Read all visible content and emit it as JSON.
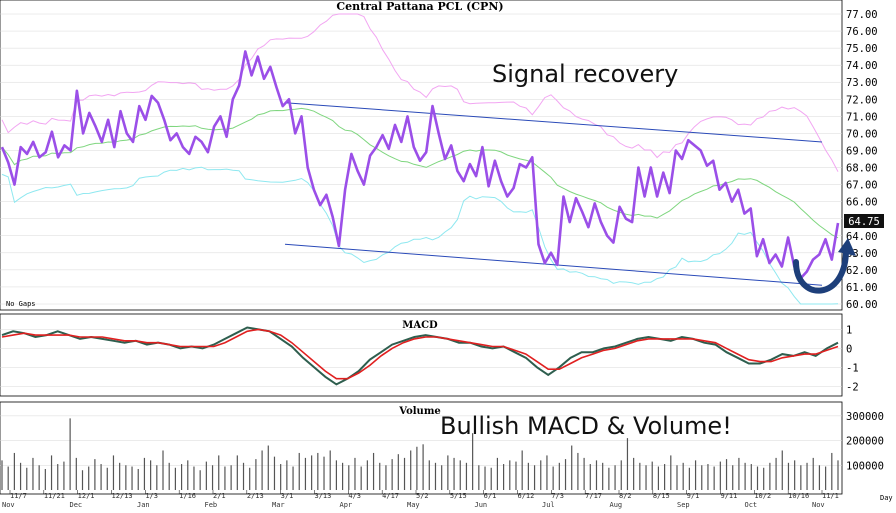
{
  "chart_data": [
    {
      "type": "line",
      "panel": "price",
      "title": "Central Pattana PCL (CPN)",
      "note": "No Gaps",
      "last_price_label": "64.75",
      "ylim": [
        60.0,
        77.0
      ],
      "y_ticks": [
        "77.00",
        "76.00",
        "75.00",
        "74.00",
        "73.00",
        "72.00",
        "71.00",
        "70.00",
        "69.00",
        "68.00",
        "67.00",
        "66.00",
        "65.00",
        "64.00",
        "63.00",
        "62.00",
        "61.00",
        "60.00"
      ],
      "x_date_ticks": [
        "11/7",
        "11/21",
        "12/1",
        "12/13",
        "1/3",
        "1/16",
        "2/1",
        "2/13",
        "3/1",
        "3/13",
        "4/3",
        "4/17",
        "5/2",
        "5/15",
        "6/1",
        "6/12",
        "7/3",
        "7/17",
        "8/2",
        "8/15",
        "9/1",
        "9/11",
        "10/2",
        "10/16",
        "11/1"
      ],
      "x_month_ticks": [
        "Nov",
        "Dec",
        "Jan",
        "Feb",
        "Mar",
        "Apr",
        "May",
        "Jun",
        "Jul",
        "Aug",
        "Sep",
        "Oct",
        "Nov"
      ],
      "x_unit": "Day",
      "annotations": [
        "Signal recovery"
      ],
      "series": [],
      "close_approx": [
        69.2,
        68.3,
        67.0,
        69.2,
        68.8,
        69.5,
        68.6,
        68.9,
        70.1,
        68.6,
        69.3,
        69.0,
        72.5,
        70.0,
        71.2,
        70.4,
        69.5,
        70.8,
        69.2,
        71.3,
        70.0,
        69.5,
        71.6,
        70.8,
        72.2,
        71.8,
        70.8,
        69.6,
        70.0,
        69.2,
        68.8,
        69.8,
        69.5,
        68.9,
        70.4,
        71.0,
        69.8,
        72.0,
        72.8,
        74.8,
        73.4,
        74.5,
        73.2,
        73.9,
        72.7,
        71.6,
        72.0,
        70.0,
        71.0,
        68.0,
        66.7,
        65.8,
        66.4,
        65.1,
        63.4,
        66.7,
        68.8,
        67.8,
        67.0,
        68.7,
        69.2,
        69.9,
        69.1,
        70.5,
        69.5,
        71.0,
        69.2,
        68.4,
        68.9,
        71.6,
        70.0,
        68.5,
        69.3,
        67.8,
        67.2,
        68.2,
        67.5,
        69.2,
        66.9,
        68.4,
        67.2,
        66.3,
        66.8,
        68.2,
        68.0,
        68.6,
        63.5,
        62.4,
        63.0,
        62.3,
        66.3,
        64.8,
        66.2,
        65.4,
        64.5,
        65.9,
        64.8,
        64.0,
        63.6,
        65.7,
        65.0,
        64.8,
        68.0,
        66.3,
        68.0,
        66.3,
        67.7,
        66.5,
        69.0,
        68.5,
        69.6,
        69.3,
        69.0,
        68.1,
        68.4,
        66.7,
        67.1,
        66.0,
        66.7,
        65.3,
        65.6,
        62.8,
        63.8,
        62.4,
        62.9,
        62.2,
        63.9,
        62.2,
        61.5,
        61.9,
        62.6,
        62.9,
        63.8,
        62.6,
        64.75
      ]
    },
    {
      "type": "line",
      "panel": "macd",
      "title": "MACD",
      "ylim": [
        -2.3,
        1.6
      ],
      "y_ticks": [
        "1",
        "0",
        "-1",
        "-2"
      ],
      "series": [],
      "macd_approx": [
        0.7,
        0.9,
        0.8,
        0.6,
        0.7,
        0.9,
        0.7,
        0.5,
        0.6,
        0.5,
        0.4,
        0.3,
        0.4,
        0.2,
        0.3,
        0.2,
        0.0,
        0.1,
        0.0,
        0.2,
        0.5,
        0.8,
        1.1,
        1.0,
        0.9,
        0.5,
        0.1,
        -0.5,
        -1.0,
        -1.5,
        -1.9,
        -1.6,
        -1.2,
        -0.6,
        -0.2,
        0.2,
        0.4,
        0.6,
        0.7,
        0.6,
        0.5,
        0.3,
        0.3,
        0.1,
        0.0,
        0.1,
        -0.2,
        -0.5,
        -1.0,
        -1.4,
        -1.0,
        -0.5,
        -0.2,
        -0.2,
        0.0,
        0.1,
        0.3,
        0.5,
        0.6,
        0.5,
        0.4,
        0.6,
        0.5,
        0.3,
        0.2,
        -0.2,
        -0.5,
        -0.8,
        -0.8,
        -0.6,
        -0.3,
        -0.4,
        -0.2,
        -0.4,
        0.0,
        0.3
      ],
      "signal_approx": [
        0.6,
        0.7,
        0.8,
        0.7,
        0.7,
        0.7,
        0.7,
        0.6,
        0.6,
        0.6,
        0.5,
        0.4,
        0.4,
        0.3,
        0.3,
        0.2,
        0.1,
        0.1,
        0.1,
        0.1,
        0.3,
        0.6,
        0.9,
        1.0,
        0.9,
        0.7,
        0.3,
        -0.2,
        -0.7,
        -1.2,
        -1.6,
        -1.6,
        -1.3,
        -0.9,
        -0.4,
        0.0,
        0.3,
        0.5,
        0.6,
        0.6,
        0.5,
        0.4,
        0.3,
        0.2,
        0.1,
        0.1,
        -0.1,
        -0.3,
        -0.7,
        -1.1,
        -1.1,
        -0.8,
        -0.5,
        -0.3,
        -0.1,
        0.0,
        0.2,
        0.4,
        0.5,
        0.5,
        0.5,
        0.5,
        0.5,
        0.4,
        0.3,
        0.0,
        -0.3,
        -0.6,
        -0.7,
        -0.7,
        -0.5,
        -0.4,
        -0.3,
        -0.3,
        -0.1,
        0.1
      ]
    },
    {
      "type": "bar",
      "panel": "volume",
      "title": "Volume",
      "annotations": [
        "Bullish MACD & Volume!"
      ],
      "ylim": [
        0,
        340000
      ],
      "y_ticks": [
        "300000",
        "200000",
        "100000"
      ],
      "values_approx": [
        120000,
        95000,
        150000,
        110000,
        90000,
        130000,
        100000,
        85000,
        140000,
        105000,
        115000,
        290000,
        130000,
        80000,
        95000,
        125000,
        105000,
        90000,
        140000,
        110000,
        100000,
        95000,
        85000,
        130000,
        120000,
        100000,
        160000,
        110000,
        90000,
        105000,
        120000,
        95000,
        80000,
        115000,
        100000,
        140000,
        95000,
        100000,
        140000,
        110000,
        90000,
        125000,
        160000,
        180000,
        135000,
        105000,
        120000,
        95000,
        150000,
        130000,
        140000,
        150000,
        135000,
        160000,
        120000,
        110000,
        100000,
        130000,
        95000,
        120000,
        150000,
        110000,
        100000,
        125000,
        145000,
        130000,
        160000,
        175000,
        185000,
        120000,
        110000,
        100000,
        140000,
        130000,
        120000,
        110000,
        230000,
        100000,
        95000,
        90000,
        130000,
        105000,
        120000,
        115000,
        160000,
        110000,
        100000,
        120000,
        140000,
        95000,
        110000,
        125000,
        180000,
        150000,
        130000,
        105000,
        120000,
        110000,
        90000,
        100000,
        120000,
        210000,
        130000,
        110000,
        100000,
        115000,
        95000,
        105000,
        140000,
        100000,
        110000,
        90000,
        120000,
        100000,
        105000,
        95000,
        115000,
        125000,
        100000,
        130000,
        110000,
        105000,
        95000,
        90000,
        110000,
        130000,
        160000,
        110000,
        120000,
        100000,
        110000,
        130000,
        100000,
        95000,
        150000,
        120000
      ]
    }
  ],
  "colors": {
    "price": "#9b4fe8",
    "upper_band": "#f2a6f2",
    "middle_band": "#7fd67f",
    "lower_band": "#8fe8f0",
    "trend_channel": "#2a4ab8",
    "macd_line": "#2e5e4e",
    "signal_line": "#e02020",
    "volume_bar": "#555555",
    "grid": "#d8d8d8",
    "recovery_arrow": "#1d3f7a"
  }
}
